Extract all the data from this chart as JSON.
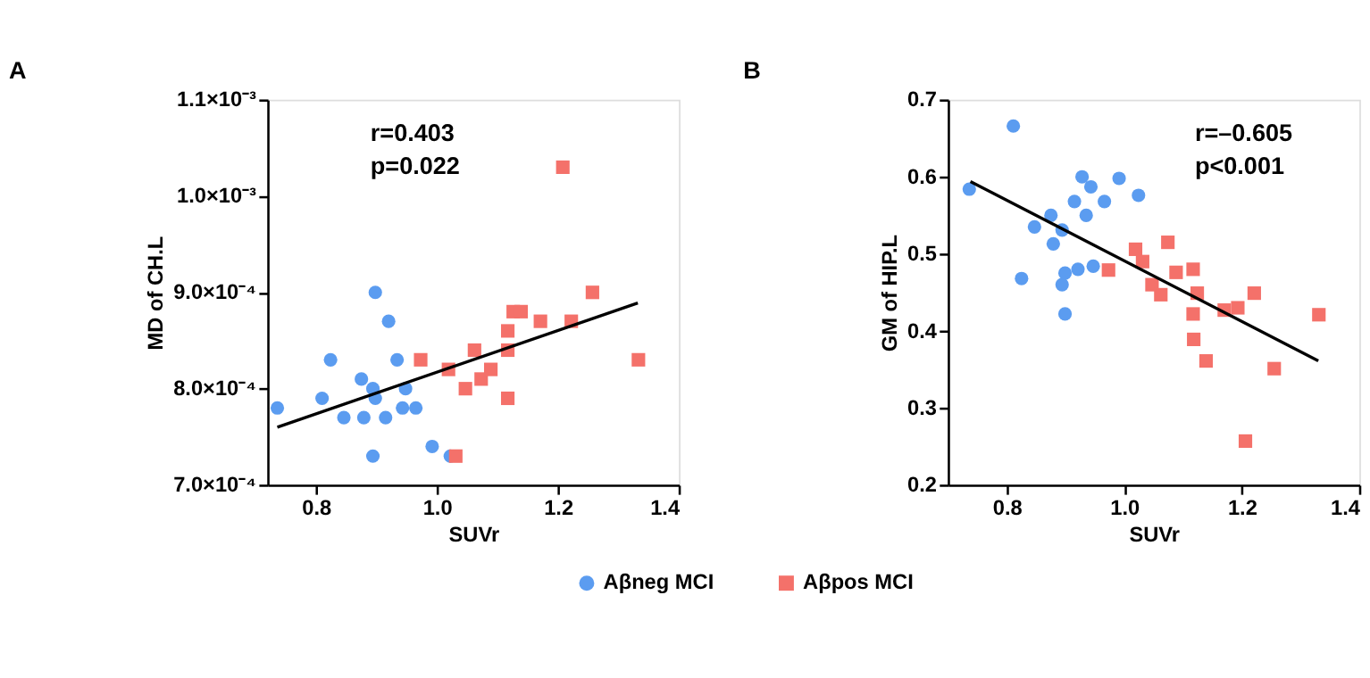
{
  "chart_data": [
    {
      "type": "scatter",
      "title": "A",
      "xlabel": "SUVr",
      "ylabel": "MD of CH.L",
      "legend": "bottom",
      "xlim": [
        0.72,
        1.4
      ],
      "xticks": [
        0.8,
        {
          "value": 1.0,
          "label": "1.0"
        },
        1.2,
        1.4
      ],
      "ylim": [
        0.0007,
        0.0011
      ],
      "yticks": [
        {
          "value": 0.0007,
          "label": "7.0×10⁻⁴"
        },
        {
          "value": 0.0008,
          "label": "8.0×10⁻⁴"
        },
        {
          "value": 0.0009,
          "label": "9.0×10⁻⁴"
        },
        {
          "value": 0.001,
          "label": "1.0×10⁻³"
        },
        {
          "value": 0.0011,
          "label": "1.1×10⁻³"
        }
      ],
      "annotations": [
        "r=0.403",
        "p=0.022"
      ],
      "series": [
        {
          "name": "Aβneg MCI",
          "color": "#5b9cf0",
          "marker": "circle",
          "x": [
            0.736,
            0.824,
            0.81,
            0.846,
            0.875,
            0.879,
            0.894,
            0.898,
            0.898,
            0.894,
            0.915,
            0.92,
            0.934,
            0.943,
            0.948,
            0.965,
            0.992,
            1.022
          ],
          "values": [
            0.00078,
            0.00083,
            0.00079,
            0.00077,
            0.00081,
            0.00077,
            0.0008,
            0.00079,
            0.0009,
            0.00073,
            0.00077,
            0.00087,
            0.00083,
            0.00078,
            0.0008,
            0.00078,
            0.00074,
            0.00073
          ]
        },
        {
          "name": "Aβpos MCI",
          "color": "#f4716a",
          "marker": "square",
          "x": [
            0.973,
            1.019,
            1.031,
            1.047,
            1.062,
            1.073,
            1.089,
            1.117,
            1.117,
            1.117,
            1.126,
            1.139,
            1.171,
            1.208,
            1.222,
            1.257,
            1.333
          ],
          "values": [
            0.00083,
            0.00082,
            0.00073,
            0.0008,
            0.00084,
            0.00081,
            0.00082,
            0.00086,
            0.00084,
            0.00079,
            0.00088,
            0.00088,
            0.00087,
            0.00103,
            0.00087,
            0.0009,
            0.00083
          ]
        },
        {
          "type": "line",
          "color": "#000000",
          "x": [
            0.736,
            1.332
          ],
          "values": [
            0.00076,
            0.000889
          ]
        }
      ]
    },
    {
      "type": "scatter",
      "title": "B",
      "xlabel": "SUVr",
      "ylabel": "GM of HIP.L",
      "legend": "bottom",
      "xlim": [
        0.7,
        1.4
      ],
      "xticks": [
        0.8,
        {
          "value": 1.0,
          "label": "1.0"
        },
        1.2,
        1.4
      ],
      "ylim": [
        0.2,
        0.7
      ],
      "yticks": [
        0.2,
        0.3,
        0.4,
        0.5,
        0.6,
        0.7
      ],
      "annotations": [
        "r=–0.605",
        "p<0.001"
      ],
      "series": [
        {
          "name": "Aβneg MCI",
          "color": "#5b9cf0",
          "marker": "circle",
          "x": [
            0.736,
            0.811,
            0.825,
            0.847,
            0.875,
            0.879,
            0.894,
            0.899,
            0.894,
            0.899,
            0.915,
            0.921,
            0.928,
            0.935,
            0.943,
            0.947,
            0.966,
            0.991,
            1.024
          ],
          "values": [
            0.584,
            0.666,
            0.468,
            0.535,
            0.55,
            0.513,
            0.531,
            0.475,
            0.46,
            0.422,
            0.568,
            0.48,
            0.6,
            0.55,
            0.587,
            0.484,
            0.568,
            0.598,
            0.576
          ]
        },
        {
          "name": "Aβpos MCI",
          "color": "#f4716a",
          "marker": "square",
          "x": [
            0.973,
            1.019,
            1.031,
            1.047,
            1.062,
            1.074,
            1.088,
            1.117,
            1.124,
            1.117,
            1.118,
            1.139,
            1.17,
            1.193,
            1.206,
            1.221,
            1.255,
            1.331
          ],
          "values": [
            0.479,
            0.506,
            0.49,
            0.46,
            0.447,
            0.515,
            0.476,
            0.48,
            0.449,
            0.422,
            0.389,
            0.361,
            0.427,
            0.43,
            0.257,
            0.449,
            0.351,
            0.421
          ]
        },
        {
          "type": "line",
          "color": "#000000",
          "x": [
            0.738,
            1.33
          ],
          "values": [
            0.594,
            0.361
          ]
        }
      ]
    }
  ]
}
